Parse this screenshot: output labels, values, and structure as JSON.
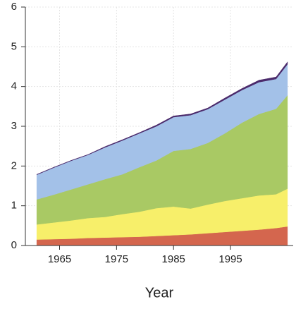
{
  "chart_data": {
    "type": "stacked-area",
    "x_label": "Year",
    "x": [
      1961,
      1964,
      1967,
      1970,
      1973,
      1976,
      1979,
      1982,
      1985,
      1988,
      1991,
      1994,
      1997,
      2000,
      2003,
      2005
    ],
    "series": [
      {
        "color": "#d4664e",
        "values": [
          0.15,
          0.16,
          0.17,
          0.19,
          0.2,
          0.21,
          0.22,
          0.24,
          0.26,
          0.28,
          0.31,
          0.34,
          0.37,
          0.4,
          0.44,
          0.48
        ]
      },
      {
        "color": "#f7ef6a",
        "values": [
          0.38,
          0.42,
          0.46,
          0.5,
          0.52,
          0.58,
          0.63,
          0.7,
          0.72,
          0.65,
          0.72,
          0.78,
          0.82,
          0.86,
          0.85,
          0.95
        ]
      },
      {
        "color": "#a9c964",
        "values": [
          0.63,
          0.7,
          0.78,
          0.85,
          0.95,
          1.0,
          1.12,
          1.2,
          1.4,
          1.5,
          1.55,
          1.7,
          1.9,
          2.05,
          2.15,
          2.35
        ]
      },
      {
        "color": "#a3c1e8",
        "values": [
          0.62,
          0.68,
          0.72,
          0.74,
          0.8,
          0.85,
          0.85,
          0.86,
          0.85,
          0.85,
          0.85,
          0.85,
          0.82,
          0.8,
          0.75,
          0.78
        ]
      },
      {
        "color": "#4b2a6b",
        "values": [
          0.01,
          0.01,
          0.01,
          0.01,
          0.02,
          0.02,
          0.02,
          0.03,
          0.03,
          0.03,
          0.03,
          0.04,
          0.04,
          0.05,
          0.05,
          0.06
        ]
      }
    ],
    "xlim": [
      1959,
      2006
    ],
    "xticks": [
      1965,
      1975,
      1985,
      1995
    ],
    "ylim": [
      0,
      6
    ],
    "yticks": [
      0,
      1,
      2,
      3,
      4,
      5,
      6
    ],
    "grid": true
  }
}
